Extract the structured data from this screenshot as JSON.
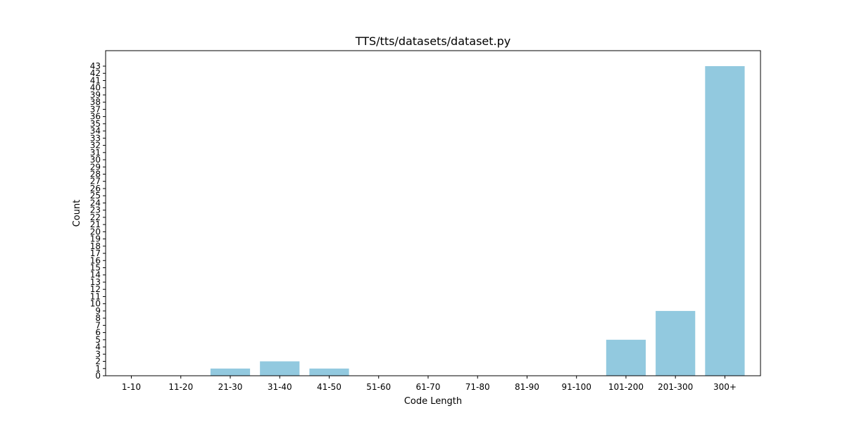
{
  "chart_data": {
    "type": "bar",
    "title": "TTS/tts/datasets/dataset.py",
    "xlabel": "Code Length",
    "ylabel": "Count",
    "categories": [
      "1-10",
      "11-20",
      "21-30",
      "31-40",
      "41-50",
      "51-60",
      "61-70",
      "71-80",
      "81-90",
      "91-100",
      "101-200",
      "201-300",
      "300+"
    ],
    "values": [
      0,
      0,
      1,
      2,
      1,
      0,
      0,
      0,
      0,
      0,
      5,
      9,
      43
    ],
    "ylim": [
      0,
      45.15
    ],
    "yticks": [
      0,
      1,
      2,
      3,
      4,
      5,
      6,
      7,
      8,
      9,
      10,
      11,
      12,
      13,
      14,
      15,
      16,
      17,
      18,
      19,
      20,
      21,
      22,
      23,
      24,
      25,
      26,
      27,
      28,
      29,
      30,
      31,
      32,
      33,
      34,
      35,
      36,
      37,
      38,
      39,
      40,
      41,
      42,
      43
    ],
    "bar_color": "#92c9df",
    "grid": false,
    "legend": "none"
  }
}
